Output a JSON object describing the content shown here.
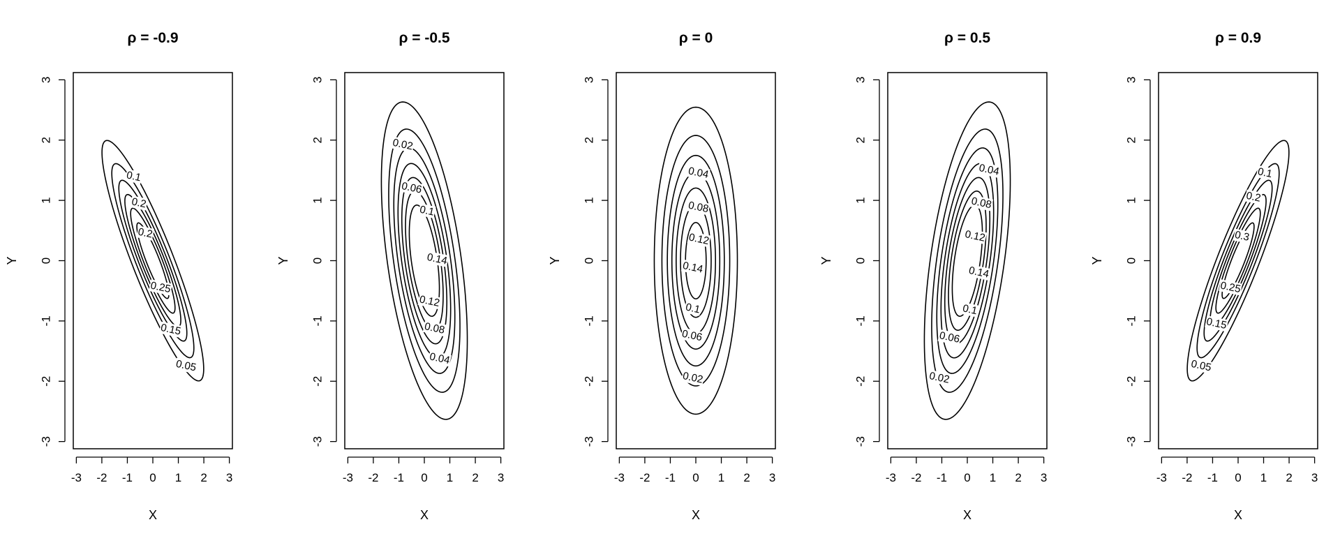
{
  "chart_data": [
    {
      "type": "contour",
      "title": "ρ = -0.9",
      "rho": -0.9,
      "sx": 1,
      "sy": 1,
      "levels": [
        0.05,
        0.1,
        0.15,
        0.2,
        0.25,
        0.3
      ],
      "labels": [
        {
          "text": "0.1",
          "x": -0.75,
          "y": 1.39
        },
        {
          "text": "0.2",
          "x": -0.55,
          "y": 0.95
        },
        {
          "text": "0.2",
          "x": -0.3,
          "y": 0.45
        },
        {
          "text": "0.25",
          "x": 0.3,
          "y": -0.45
        },
        {
          "text": "0.15",
          "x": 0.7,
          "y": -1.15
        },
        {
          "text": "0.05",
          "x": 1.3,
          "y": -1.75
        }
      ],
      "xlabel": "X",
      "ylabel": "Y",
      "xlim": [
        -3,
        3
      ],
      "ylim": [
        -3,
        3
      ],
      "xticks": [
        -3,
        -2,
        -1,
        0,
        1,
        2,
        3
      ],
      "yticks": [
        -3,
        -2,
        -1,
        0,
        1,
        2,
        3
      ]
    },
    {
      "type": "contour",
      "title": "ρ = -0.5",
      "rho": -0.5,
      "sx": 0.8,
      "sy": 1.25,
      "levels": [
        0.02,
        0.04,
        0.06,
        0.08,
        0.1,
        0.12,
        0.14
      ],
      "labels": [
        {
          "text": "0.02",
          "x": -0.85,
          "y": 1.92
        },
        {
          "text": "0.06",
          "x": -0.5,
          "y": 1.2
        },
        {
          "text": "0.1",
          "x": 0.1,
          "y": 0.82
        },
        {
          "text": "0.14",
          "x": 0.5,
          "y": 0.02
        },
        {
          "text": "0.12",
          "x": 0.2,
          "y": -0.68
        },
        {
          "text": "0.08",
          "x": 0.4,
          "y": -1.13
        },
        {
          "text": "0.04",
          "x": 0.6,
          "y": -1.63
        }
      ],
      "xlabel": "X",
      "ylabel": "Y",
      "xlim": [
        -3,
        3
      ],
      "ylim": [
        -3,
        3
      ],
      "xticks": [
        -3,
        -2,
        -1,
        0,
        1,
        2,
        3
      ],
      "yticks": [
        -3,
        -2,
        -1,
        0,
        1,
        2,
        3
      ]
    },
    {
      "type": "contour",
      "title": "ρ = 0",
      "rho": 0,
      "sx": 0.8,
      "sy": 1.25,
      "levels": [
        0.02,
        0.04,
        0.06,
        0.08,
        0.1,
        0.12,
        0.14
      ],
      "labels": [
        {
          "text": "0.04",
          "x": 0.1,
          "y": 1.45
        },
        {
          "text": "0.08",
          "x": 0.1,
          "y": 0.88
        },
        {
          "text": "0.12",
          "x": 0.12,
          "y": 0.35
        },
        {
          "text": "0.14",
          "x": -0.12,
          "y": -0.12
        },
        {
          "text": "0.1",
          "x": -0.12,
          "y": -0.8
        },
        {
          "text": "0.06",
          "x": -0.15,
          "y": -1.25
        },
        {
          "text": "0.02",
          "x": -0.12,
          "y": -1.95
        }
      ],
      "xlabel": "X",
      "ylabel": "Y",
      "xlim": [
        -3,
        3
      ],
      "ylim": [
        -3,
        3
      ],
      "xticks": [
        -3,
        -2,
        -1,
        0,
        1,
        2,
        3
      ],
      "yticks": [
        -3,
        -2,
        -1,
        0,
        1,
        2,
        3
      ]
    },
    {
      "type": "contour",
      "title": "ρ = 0.5",
      "rho": 0.5,
      "sx": 0.8,
      "sy": 1.25,
      "levels": [
        0.02,
        0.04,
        0.06,
        0.08,
        0.1,
        0.12,
        0.14
      ],
      "labels": [
        {
          "text": "0.04",
          "x": 0.85,
          "y": 1.5
        },
        {
          "text": "0.08",
          "x": 0.55,
          "y": 0.95
        },
        {
          "text": "0.12",
          "x": 0.3,
          "y": 0.4
        },
        {
          "text": "0.14",
          "x": 0.45,
          "y": -0.2
        },
        {
          "text": "0.1",
          "x": 0.1,
          "y": -0.82
        },
        {
          "text": "0.06",
          "x": -0.7,
          "y": -1.28
        },
        {
          "text": "0.02",
          "x": -1.1,
          "y": -1.95
        }
      ],
      "xlabel": "X",
      "ylabel": "Y",
      "xlim": [
        -3,
        3
      ],
      "ylim": [
        -3,
        3
      ],
      "xticks": [
        -3,
        -2,
        -1,
        0,
        1,
        2,
        3
      ],
      "yticks": [
        -3,
        -2,
        -1,
        0,
        1,
        2,
        3
      ]
    },
    {
      "type": "contour",
      "title": "ρ = 0.9",
      "rho": 0.9,
      "sx": 1,
      "sy": 1,
      "levels": [
        0.05,
        0.1,
        0.15,
        0.2,
        0.25,
        0.3
      ],
      "labels": [
        {
          "text": "0.1",
          "x": 1.05,
          "y": 1.45
        },
        {
          "text": "0.2",
          "x": 0.6,
          "y": 1.05
        },
        {
          "text": "0.3",
          "x": 0.15,
          "y": 0.4
        },
        {
          "text": "0.25",
          "x": -0.3,
          "y": -0.45
        },
        {
          "text": "0.15",
          "x": -0.85,
          "y": -1.05
        },
        {
          "text": "0.05",
          "x": -1.45,
          "y": -1.75
        }
      ],
      "xlabel": "X",
      "ylabel": "Y",
      "xlim": [
        -3,
        3
      ],
      "ylim": [
        -3,
        3
      ],
      "xticks": [
        -3,
        -2,
        -1,
        0,
        1,
        2,
        3
      ],
      "yticks": [
        -3,
        -2,
        -1,
        0,
        1,
        2,
        3
      ]
    }
  ]
}
